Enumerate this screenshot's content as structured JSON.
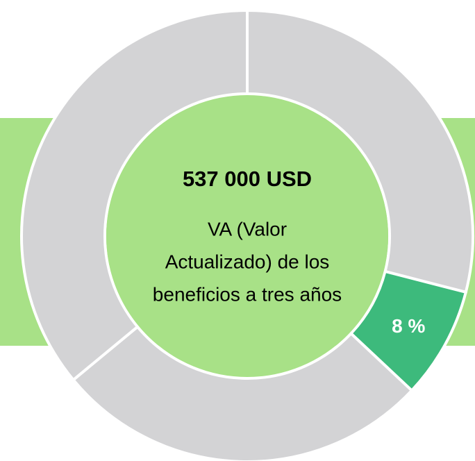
{
  "chart_data": {
    "type": "donut",
    "title": "537 000 USD",
    "subtitle": [
      "VA (Valor",
      "Actualizado) de los",
      "beneficios a tres años"
    ],
    "values": [
      29,
      8,
      27,
      36
    ],
    "value_labels": [
      null,
      "8 %",
      null,
      null
    ],
    "colors": [
      "#d3d3d5",
      "#3dba7c",
      "#d3d3d5",
      "#d3d3d5"
    ],
    "background": "#a8e187"
  }
}
